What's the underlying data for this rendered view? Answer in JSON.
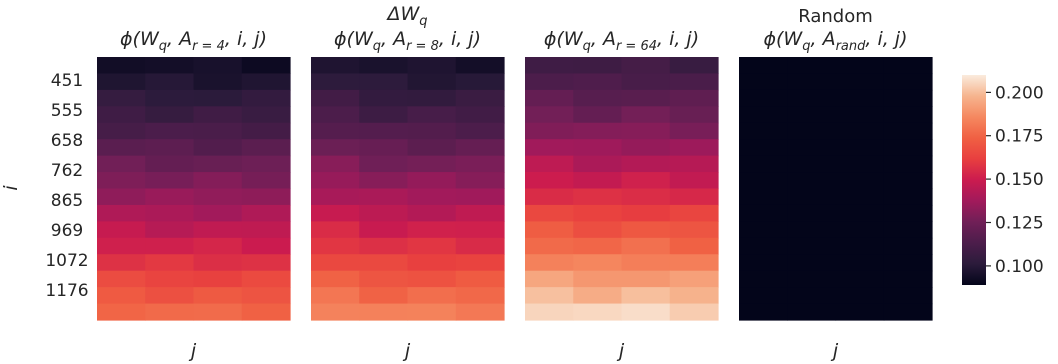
{
  "chart_data": [
    {
      "type": "heatmap",
      "title_top": "",
      "title": "ϕ(W_q, A_{r=4}, i, j)",
      "title_parts": {
        "pre": "ϕ(W",
        "wsub": "q",
        "mid": ", A",
        "asub": "r = 4",
        "post": ", i, j)"
      },
      "xlabel": "j",
      "ylabel": "i",
      "y_tick_labels": [
        "451",
        "555",
        "658",
        "762",
        "865",
        "969",
        "1072",
        "1176"
      ],
      "n_rows": 16,
      "n_cols": 4,
      "rows_start": 0.094,
      "rows_end": 0.176,
      "col_offsets": [
        0.001,
        0.0,
        0.0,
        0.0
      ],
      "jitter": 0.002
    },
    {
      "type": "heatmap",
      "title_top": "ΔW_q",
      "title_top_parts": {
        "pre": "ΔW",
        "sub": "q"
      },
      "title": "ϕ(W_q, A_{r=8}, i, j)",
      "title_parts": {
        "pre": "ϕ(W",
        "wsub": "q",
        "mid": ", A",
        "asub": "r = 8",
        "post": ", i, j)"
      },
      "xlabel": "j",
      "ylabel": "",
      "y_tick_labels": [],
      "n_rows": 16,
      "n_cols": 4,
      "rows_start": 0.096,
      "rows_end": 0.183,
      "col_offsets": [
        0.003,
        0.0,
        0.0,
        0.0
      ],
      "jitter": 0.002
    },
    {
      "type": "heatmap",
      "title_top": "",
      "title": "ϕ(W_q, A_{r=64}, i, j)",
      "title_parts": {
        "pre": "ϕ(W",
        "wsub": "q",
        "mid": ", A",
        "asub": "r = 64",
        "post": ", i, j)"
      },
      "xlabel": "j",
      "ylabel": "",
      "y_tick_labels": [],
      "n_rows": 16,
      "n_cols": 4,
      "rows_start": 0.108,
      "rows_end": 0.205,
      "col_offsets": [
        0.002,
        0.0,
        0.001,
        0.0
      ],
      "jitter": 0.002
    },
    {
      "type": "heatmap",
      "title_top": "Random",
      "title": "ϕ(W_q, A_{rand}, i, j)",
      "title_parts": {
        "pre": "ϕ(W",
        "wsub": "q",
        "mid": ", A",
        "asub": "rand",
        "post": ", i, j)"
      },
      "xlabel": "j",
      "ylabel": "",
      "y_tick_labels": [],
      "n_rows": 16,
      "n_cols": 4,
      "rows_start": 0.089,
      "rows_end": 0.089,
      "col_offsets": [
        0.0,
        0.0,
        0.0,
        0.0
      ],
      "jitter": 0.0
    }
  ],
  "colorbar": {
    "colormap": "rocket",
    "vmin": 0.089,
    "vmax": 0.21,
    "ticks": [
      0.1,
      0.125,
      0.15,
      0.175,
      0.2
    ],
    "tick_labels": [
      "0.100",
      "0.125",
      "0.150",
      "0.175",
      "0.200"
    ]
  },
  "colormap_stops": [
    "#03051a",
    "#2b1b3b",
    "#4c1d4b",
    "#701f57",
    "#a11a5b",
    "#cb1b4f",
    "#e83f3f",
    "#f06043",
    "#f58860",
    "#f6b48e",
    "#faebdd"
  ]
}
